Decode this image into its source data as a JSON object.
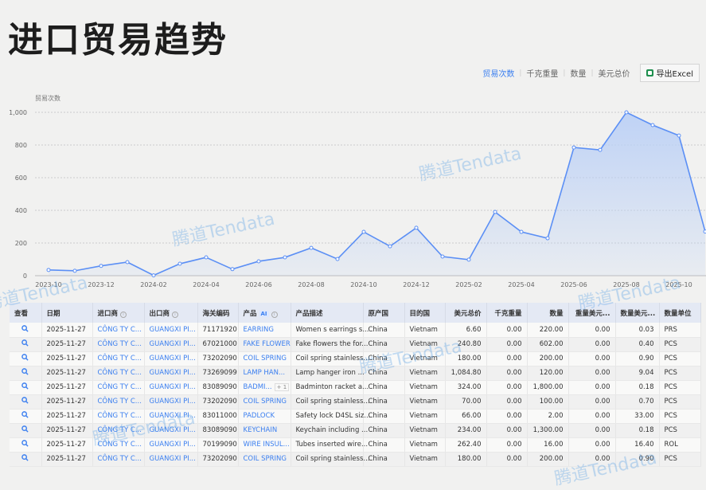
{
  "title": "进口贸易趋势",
  "tabs": [
    {
      "label": "贸易次数",
      "active": true
    },
    {
      "label": "千克重量"
    },
    {
      "label": "数量"
    },
    {
      "label": "美元总价"
    }
  ],
  "export_label": "导出Excel",
  "watermark": "腾道Tendata",
  "colors": {
    "accent": "#3b7ff0",
    "line": "#5b8ff5",
    "fill": "#b9cff6"
  },
  "chart_data": {
    "type": "area",
    "ylabel": "贸易次数",
    "ylim": [
      0,
      1000
    ],
    "yticks": [
      "0",
      "200",
      "400",
      "600",
      "800",
      "1,000"
    ],
    "grid": true,
    "x": [
      "2023-10",
      "2023-11",
      "2023-12",
      "2024-01",
      "2024-02",
      "2024-03",
      "2024-04",
      "2024-05",
      "2024-06",
      "2024-07",
      "2024-08",
      "2024-09",
      "2024-10",
      "2024-11",
      "2024-12",
      "2025-01",
      "2025-02",
      "2025-03",
      "2025-04",
      "2025-05",
      "2025-06",
      "2025-07",
      "2025-08",
      "2025-09",
      "2025-10",
      "2025-11"
    ],
    "xticks": [
      "2023-10",
      "2023-12",
      "2024-02",
      "2024-04",
      "2024-06",
      "2024-08",
      "2024-10",
      "2024-12",
      "2025-02",
      "2025-04",
      "2025-06",
      "2025-08",
      "2025-10"
    ],
    "values": [
      35,
      30,
      60,
      83,
      2,
      73,
      112,
      40,
      88,
      112,
      170,
      102,
      268,
      180,
      293,
      117,
      98,
      390,
      268,
      229,
      785,
      770,
      1000,
      922,
      858,
      270
    ]
  },
  "table": {
    "headers": [
      "查看",
      "日期",
      "进口商",
      "出口商",
      "海关编码",
      "产品",
      "产品描述",
      "原产国",
      "目的国",
      "美元总价",
      "千克重量",
      "数量",
      "重量美元...",
      "数量美元...",
      "数量单位"
    ],
    "ai_badge": "AI",
    "rows": [
      [
        "2025-11-27",
        "CÔNG TY C...",
        "GUANGXI PI...",
        "71171920",
        "EARRING",
        "Women s earrings s...",
        "China",
        "Vietnam",
        "6.60",
        "0.00",
        "220.00",
        "0.00",
        "0.03",
        "PRS",
        ""
      ],
      [
        "2025-11-27",
        "CÔNG TY C...",
        "GUANGXI PI...",
        "67021000",
        "FAKE FLOWER",
        "Fake flowers the for...",
        "China",
        "Vietnam",
        "240.80",
        "0.00",
        "602.00",
        "0.00",
        "0.40",
        "PCS",
        ""
      ],
      [
        "2025-11-27",
        "CÔNG TY C...",
        "GUANGXI PI...",
        "73202090",
        "COIL SPRING",
        "Coil spring stainless...",
        "China",
        "Vietnam",
        "180.00",
        "0.00",
        "200.00",
        "0.00",
        "0.90",
        "PCS",
        ""
      ],
      [
        "2025-11-27",
        "CÔNG TY C...",
        "GUANGXI PI...",
        "73269099",
        "LAMP HAN...",
        "Lamp hanger iron ...",
        "China",
        "Vietnam",
        "1,084.80",
        "0.00",
        "120.00",
        "0.00",
        "9.04",
        "PCS",
        ""
      ],
      [
        "2025-11-27",
        "CÔNG TY C...",
        "GUANGXI PI...",
        "83089090",
        "BADMI...",
        "Badminton racket a...",
        "China",
        "Vietnam",
        "324.00",
        "0.00",
        "1,800.00",
        "0.00",
        "0.18",
        "PCS",
        "+ 1"
      ],
      [
        "2025-11-27",
        "CÔNG TY C...",
        "GUANGXI PI...",
        "73202090",
        "COIL SPRING",
        "Coil spring stainless...",
        "China",
        "Vietnam",
        "70.00",
        "0.00",
        "100.00",
        "0.00",
        "0.70",
        "PCS",
        ""
      ],
      [
        "2025-11-27",
        "CÔNG TY C...",
        "GUANGXI PI...",
        "83011000",
        "PADLOCK",
        "Safety lock D4SL siz...",
        "China",
        "Vietnam",
        "66.00",
        "0.00",
        "2.00",
        "0.00",
        "33.00",
        "PCS",
        ""
      ],
      [
        "2025-11-27",
        "CÔNG TY C...",
        "GUANGXI PI...",
        "83089090",
        "KEYCHAIN",
        "Keychain including ...",
        "China",
        "Vietnam",
        "234.00",
        "0.00",
        "1,300.00",
        "0.00",
        "0.18",
        "PCS",
        ""
      ],
      [
        "2025-11-27",
        "CÔNG TY C...",
        "GUANGXI PI...",
        "70199090",
        "WIRE INSUL...",
        "Tubes inserted wire...",
        "China",
        "Vietnam",
        "262.40",
        "0.00",
        "16.00",
        "0.00",
        "16.40",
        "ROL",
        ""
      ],
      [
        "2025-11-27",
        "CÔNG TY C...",
        "GUANGXI PI...",
        "73202090",
        "COIL SPRING",
        "Coil spring stainless...",
        "China",
        "Vietnam",
        "180.00",
        "0.00",
        "200.00",
        "0.00",
        "0.90",
        "PCS",
        ""
      ]
    ]
  }
}
